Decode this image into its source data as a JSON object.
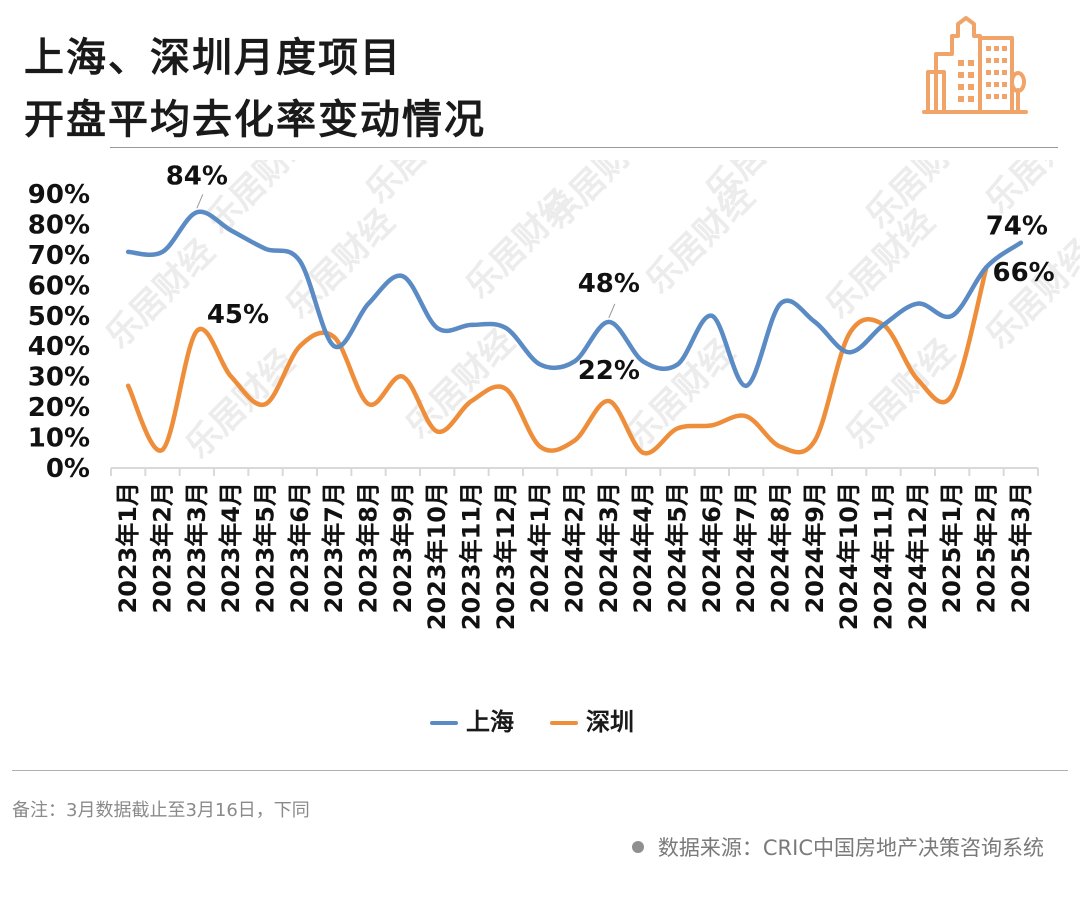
{
  "title": {
    "line1": "上海、深圳月度项目",
    "line2": "开盘平均去化率变动情况"
  },
  "colors": {
    "shanghai": "#5b8bc4",
    "shenzhen": "#ef8e3a",
    "logo": "#f0a46a",
    "axis": "#d9d9d9"
  },
  "chart_data": {
    "type": "line",
    "categories": [
      "2023年1月",
      "2023年2月",
      "2023年3月",
      "2023年4月",
      "2023年5月",
      "2023年6月",
      "2023年7月",
      "2023年8月",
      "2023年9月",
      "2023年10月",
      "2023年11月",
      "2023年12月",
      "2024年1月",
      "2024年2月",
      "2024年3月",
      "2024年4月",
      "2024年5月",
      "2024年6月",
      "2024年7月",
      "2024年8月",
      "2024年9月",
      "2024年10月",
      "2024年11月",
      "2024年12月",
      "2025年1月",
      "2025年2月",
      "2025年3月"
    ],
    "yticks": [
      "0%",
      "10%",
      "20%",
      "30%",
      "40%",
      "50%",
      "60%",
      "70%",
      "80%",
      "90%"
    ],
    "ylim": [
      0,
      90
    ],
    "grid": false,
    "legend_position": "bottom",
    "series": [
      {
        "name": "上海",
        "color": "#5b8bc4",
        "values": [
          71,
          71,
          84,
          78,
          72,
          68,
          40,
          54,
          63,
          46,
          47,
          46,
          34,
          35,
          48,
          35,
          34,
          50,
          27,
          54,
          48,
          38,
          47,
          54,
          50,
          66,
          74
        ]
      },
      {
        "name": "深圳",
        "color": "#ef8e3a",
        "values": [
          27,
          6,
          45,
          30,
          21,
          40,
          43,
          21,
          30,
          12,
          22,
          26,
          7,
          9,
          22,
          5,
          13,
          14,
          17,
          7,
          9,
          44,
          47,
          29,
          24,
          66,
          null
        ]
      }
    ],
    "data_labels": [
      {
        "series": 0,
        "index": 2,
        "text": "84%"
      },
      {
        "series": 1,
        "index": 2,
        "text": "45%"
      },
      {
        "series": 0,
        "index": 14,
        "text": "48%"
      },
      {
        "series": 1,
        "index": 14,
        "text": "22%"
      },
      {
        "series": 0,
        "index": 26,
        "text": "74%"
      },
      {
        "series": 1,
        "index": 25,
        "text": "66%"
      }
    ]
  },
  "legend": {
    "items": [
      {
        "label": "上海"
      },
      {
        "label": "深圳"
      }
    ]
  },
  "watermark": "乐居财经",
  "note": "备注：3月数据截止至3月16日，下同",
  "source": "数据来源：CRIC中国房地产决策咨询系统",
  "logo_icon": "buildings-icon"
}
